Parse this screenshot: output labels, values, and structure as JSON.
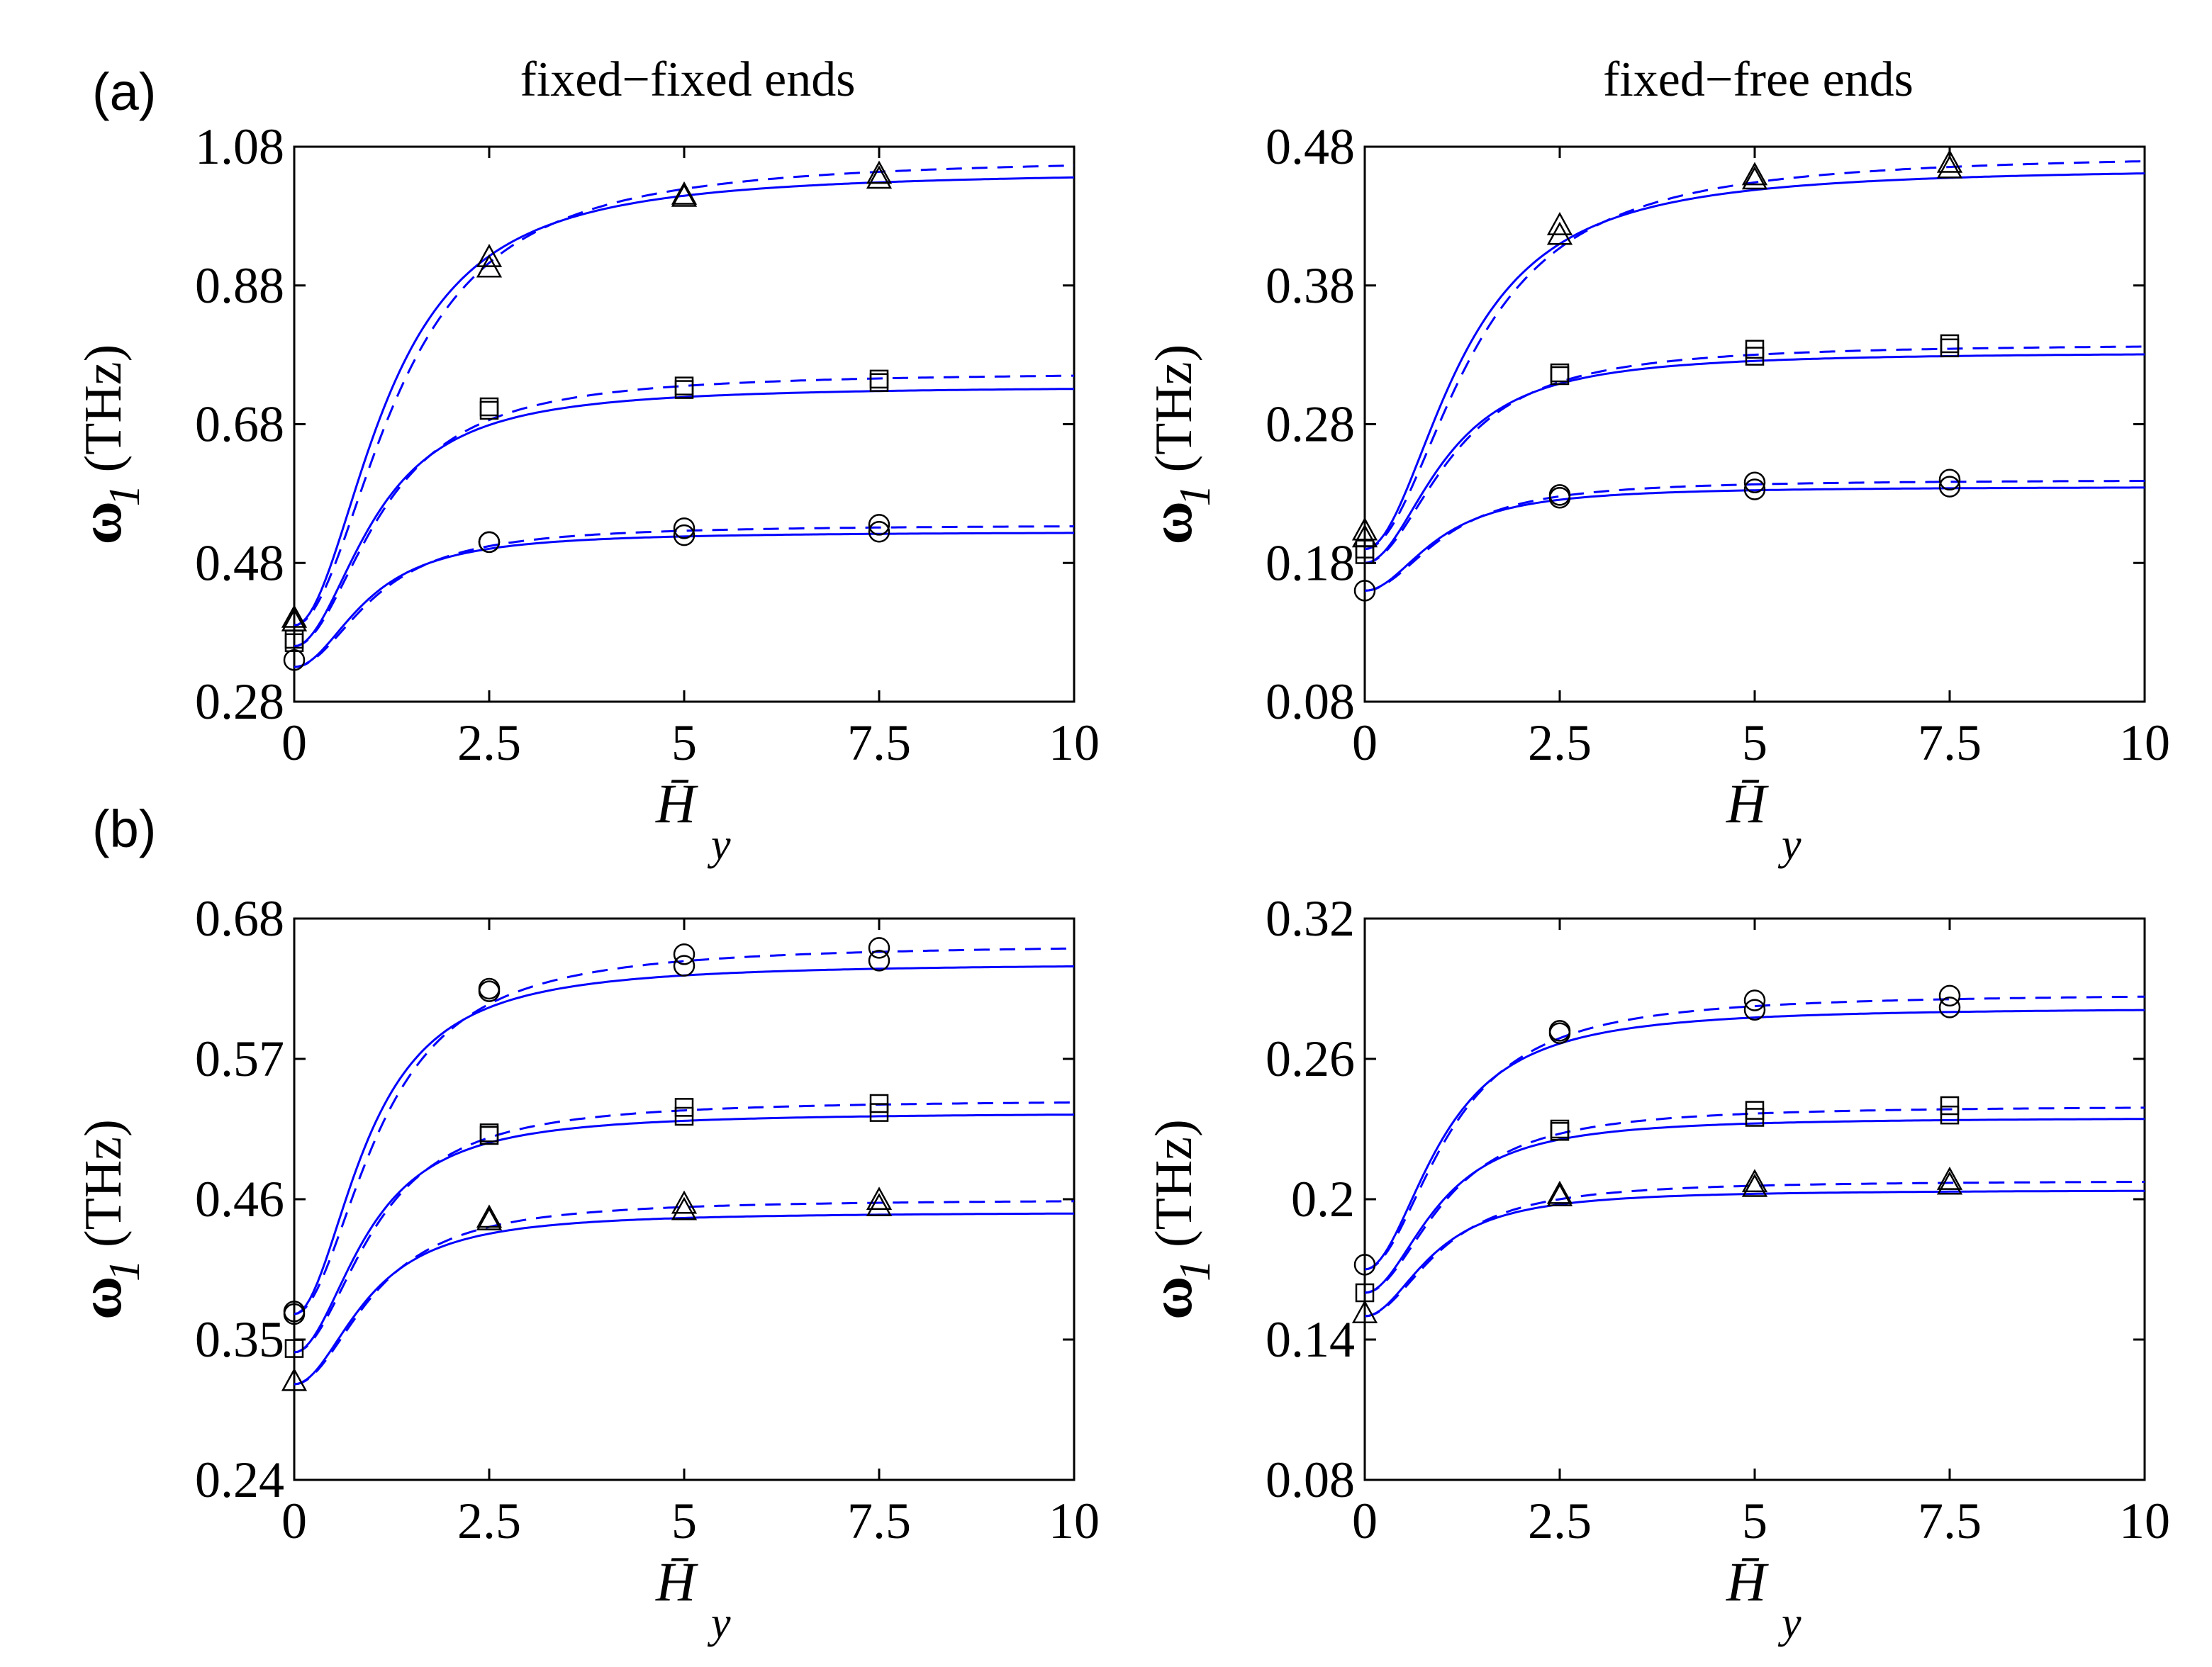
{
  "figure": {
    "panel_labels": [
      "(a)",
      "(b)"
    ],
    "column_titles": [
      "fixed−fixed ends",
      "fixed−free ends"
    ],
    "colors": {
      "curve": "#0000ff",
      "marker": "#000000",
      "axis": "#000000"
    }
  },
  "chart_data": [
    {
      "id": "a-fixed-fixed",
      "type": "line",
      "title": "fixed−fixed ends",
      "panel_label": "(a)",
      "xlabel": "H̄",
      "xlabel_sub": "y",
      "ylabel": "ω",
      "ylabel_sub": "1",
      "ylabel_unit": "(THz)",
      "xlim": [
        0,
        10
      ],
      "ylim": [
        0.28,
        1.08
      ],
      "xticks": [
        0,
        2.5,
        5,
        7.5,
        10
      ],
      "xtick_labels": [
        "0",
        "2.5",
        "5",
        "7.5",
        "10"
      ],
      "yticks": [
        0.28,
        0.48,
        0.68,
        0.88,
        1.08
      ],
      "ytick_labels": [
        "0.28",
        "0.48",
        "0.68",
        "0.88",
        "1.08"
      ],
      "series": [
        {
          "name": "triangle",
          "marker": "triangle",
          "solid": {
            "y0": 0.39,
            "yinf": 1.045,
            "xh": 1.2,
            "p": 2.0
          },
          "dashed": {
            "y0": 0.39,
            "yinf": 1.065,
            "xh": 1.35,
            "p": 2.0
          },
          "markers": [
            [
              0,
              0.4
            ],
            [
              0,
              0.395
            ],
            [
              2.5,
              0.92
            ],
            [
              2.5,
              0.905
            ],
            [
              5,
              1.01
            ],
            [
              5,
              1.007
            ],
            [
              7.5,
              1.04
            ],
            [
              7.5,
              1.033
            ]
          ]
        },
        {
          "name": "square",
          "marker": "square",
          "solid": {
            "y0": 0.36,
            "yinf": 0.735,
            "xh": 1.05,
            "p": 2.0
          },
          "dashed": {
            "y0": 0.36,
            "yinf": 0.755,
            "xh": 1.15,
            "p": 2.0
          },
          "markers": [
            [
              0,
              0.37
            ],
            [
              0,
              0.365
            ],
            [
              2.5,
              0.705
            ],
            [
              2.5,
              0.7
            ],
            [
              5,
              0.735
            ],
            [
              5,
              0.73
            ],
            [
              7.5,
              0.745
            ],
            [
              7.5,
              0.74
            ]
          ]
        },
        {
          "name": "circle",
          "marker": "circle",
          "solid": {
            "y0": 0.33,
            "yinf": 0.525,
            "xh": 0.95,
            "p": 2.0
          },
          "dashed": {
            "y0": 0.33,
            "yinf": 0.535,
            "xh": 1.05,
            "p": 2.0
          },
          "markers": [
            [
              0,
              0.34
            ],
            [
              2.5,
              0.51
            ],
            [
              2.5,
              0.51
            ],
            [
              5,
              0.53
            ],
            [
              5,
              0.52
            ],
            [
              7.5,
              0.535
            ],
            [
              7.5,
              0.525
            ]
          ]
        }
      ]
    },
    {
      "id": "a-fixed-free",
      "type": "line",
      "title": "fixed−free ends",
      "panel_label": "",
      "xlabel": "H̄",
      "xlabel_sub": "y",
      "ylabel": "ω",
      "ylabel_sub": "1",
      "ylabel_unit": "(THz)",
      "xlim": [
        0,
        10
      ],
      "ylim": [
        0.08,
        0.48
      ],
      "xticks": [
        0,
        2.5,
        5,
        7.5,
        10
      ],
      "xtick_labels": [
        "0",
        "2.5",
        "5",
        "7.5",
        "10"
      ],
      "yticks": [
        0.08,
        0.18,
        0.28,
        0.38,
        0.48
      ],
      "ytick_labels": [
        "0.08",
        "0.18",
        "0.28",
        "0.38",
        "0.48"
      ],
      "series": [
        {
          "name": "triangle",
          "marker": "triangle",
          "solid": {
            "y0": 0.19,
            "yinf": 0.465,
            "xh": 1.25,
            "p": 2.0
          },
          "dashed": {
            "y0": 0.19,
            "yinf": 0.475,
            "xh": 1.4,
            "p": 2.0
          },
          "markers": [
            [
              0,
              0.203
            ],
            [
              0,
              0.198
            ],
            [
              2.5,
              0.423
            ],
            [
              2.5,
              0.416
            ],
            [
              5,
              0.459
            ],
            [
              5,
              0.456
            ],
            [
              7.5,
              0.468
            ],
            [
              7.5,
              0.464
            ]
          ]
        },
        {
          "name": "square",
          "marker": "square",
          "solid": {
            "y0": 0.18,
            "yinf": 0.332,
            "xh": 1.05,
            "p": 2.0
          },
          "dashed": {
            "y0": 0.18,
            "yinf": 0.338,
            "xh": 1.15,
            "p": 2.0
          },
          "markers": [
            [
              0,
              0.19
            ],
            [
              0,
              0.186
            ],
            [
              2.5,
              0.317
            ],
            [
              2.5,
              0.315
            ],
            [
              5,
              0.334
            ],
            [
              5,
              0.329
            ],
            [
              7.5,
              0.338
            ],
            [
              7.5,
              0.335
            ]
          ]
        },
        {
          "name": "circle",
          "marker": "circle",
          "solid": {
            "y0": 0.16,
            "yinf": 0.235,
            "xh": 0.95,
            "p": 2.0
          },
          "dashed": {
            "y0": 0.16,
            "yinf": 0.24,
            "xh": 1.05,
            "p": 2.0
          },
          "markers": [
            [
              0,
              0.16
            ],
            [
              2.5,
              0.229
            ],
            [
              2.5,
              0.227
            ],
            [
              5,
              0.238
            ],
            [
              5,
              0.233
            ],
            [
              7.5,
              0.24
            ],
            [
              7.5,
              0.235
            ]
          ]
        }
      ]
    },
    {
      "id": "b-fixed-fixed",
      "type": "line",
      "title": "",
      "panel_label": "(b)",
      "xlabel": "H̄",
      "xlabel_sub": "y",
      "ylabel": "ω",
      "ylabel_sub": "1",
      "ylabel_unit": "(THz)",
      "xlim": [
        0,
        10
      ],
      "ylim": [
        0.24,
        0.68
      ],
      "xticks": [
        0,
        2.5,
        5,
        7.5,
        10
      ],
      "xtick_labels": [
        "0",
        "2.5",
        "5",
        "7.5",
        "10"
      ],
      "yticks": [
        0.24,
        0.35,
        0.46,
        0.57,
        0.68
      ],
      "ytick_labels": [
        "0.24",
        "0.35",
        "0.46",
        "0.57",
        "0.68"
      ],
      "series": [
        {
          "name": "circle",
          "marker": "circle",
          "solid": {
            "y0": 0.37,
            "yinf": 0.645,
            "xh": 0.95,
            "p": 2.0
          },
          "dashed": {
            "y0": 0.37,
            "yinf": 0.66,
            "xh": 1.1,
            "p": 2.0
          },
          "markers": [
            [
              0,
              0.372
            ],
            [
              0,
              0.37
            ],
            [
              2.5,
              0.625
            ],
            [
              2.5,
              0.623
            ],
            [
              5,
              0.652
            ],
            [
              5,
              0.643
            ],
            [
              7.5,
              0.657
            ],
            [
              7.5,
              0.647
            ]
          ]
        },
        {
          "name": "square",
          "marker": "square",
          "solid": {
            "y0": 0.34,
            "yinf": 0.528,
            "xh": 0.95,
            "p": 2.0
          },
          "dashed": {
            "y0": 0.34,
            "yinf": 0.538,
            "xh": 1.05,
            "p": 2.0
          },
          "markers": [
            [
              0,
              0.343
            ],
            [
              2.5,
              0.512
            ],
            [
              2.5,
              0.51
            ],
            [
              5,
              0.532
            ],
            [
              5,
              0.525
            ],
            [
              7.5,
              0.535
            ],
            [
              7.5,
              0.528
            ]
          ]
        },
        {
          "name": "triangle",
          "marker": "triangle",
          "solid": {
            "y0": 0.315,
            "yinf": 0.45,
            "xh": 0.95,
            "p": 2.0
          },
          "dashed": {
            "y0": 0.315,
            "yinf": 0.46,
            "xh": 1.05,
            "p": 2.0
          },
          "markers": [
            [
              0,
              0.317
            ],
            [
              2.5,
              0.445
            ],
            [
              2.5,
              0.443
            ],
            [
              5,
              0.456
            ],
            [
              5,
              0.451
            ],
            [
              7.5,
              0.459
            ],
            [
              7.5,
              0.454
            ]
          ]
        }
      ]
    },
    {
      "id": "b-fixed-free",
      "type": "line",
      "title": "",
      "panel_label": "",
      "xlabel": "H̄",
      "xlabel_sub": "y",
      "ylabel": "ω",
      "ylabel_sub": "1",
      "ylabel_unit": "(THz)",
      "xlim": [
        0,
        10
      ],
      "ylim": [
        0.08,
        0.32
      ],
      "xticks": [
        0,
        2.5,
        5,
        7.5,
        10
      ],
      "xtick_labels": [
        "0",
        "2.5",
        "5",
        "7.5",
        "10"
      ],
      "yticks": [
        0.08,
        0.14,
        0.2,
        0.26,
        0.32
      ],
      "ytick_labels": [
        "0.08",
        "0.14",
        "0.2",
        "0.26",
        "0.32"
      ],
      "series": [
        {
          "name": "circle",
          "marker": "circle",
          "solid": {
            "y0": 0.17,
            "yinf": 0.282,
            "xh": 1.0,
            "p": 2.0
          },
          "dashed": {
            "y0": 0.17,
            "yinf": 0.288,
            "xh": 1.1,
            "p": 2.0
          },
          "markers": [
            [
              0,
              0.172
            ],
            [
              2.5,
              0.272
            ],
            [
              2.5,
              0.271
            ],
            [
              5,
              0.285
            ],
            [
              5,
              0.281
            ],
            [
              7.5,
              0.287
            ],
            [
              7.5,
              0.282
            ]
          ]
        },
        {
          "name": "square",
          "marker": "square",
          "solid": {
            "y0": 0.16,
            "yinf": 0.235,
            "xh": 0.95,
            "p": 2.0
          },
          "dashed": {
            "y0": 0.16,
            "yinf": 0.24,
            "xh": 1.05,
            "p": 2.0
          },
          "markers": [
            [
              0,
              0.16
            ],
            [
              2.5,
              0.23
            ],
            [
              2.5,
              0.229
            ],
            [
              5,
              0.238
            ],
            [
              5,
              0.235
            ],
            [
              7.5,
              0.24
            ],
            [
              7.5,
              0.236
            ]
          ]
        },
        {
          "name": "triangle",
          "marker": "triangle",
          "solid": {
            "y0": 0.15,
            "yinf": 0.204,
            "xh": 0.9,
            "p": 2.0
          },
          "dashed": {
            "y0": 0.15,
            "yinf": 0.208,
            "xh": 1.0,
            "p": 2.0
          },
          "markers": [
            [
              0,
              0.151
            ],
            [
              2.5,
              0.202
            ],
            [
              2.5,
              0.201
            ],
            [
              5,
              0.207
            ],
            [
              5,
              0.205
            ],
            [
              7.5,
              0.208
            ],
            [
              7.5,
              0.206
            ]
          ]
        }
      ]
    }
  ]
}
